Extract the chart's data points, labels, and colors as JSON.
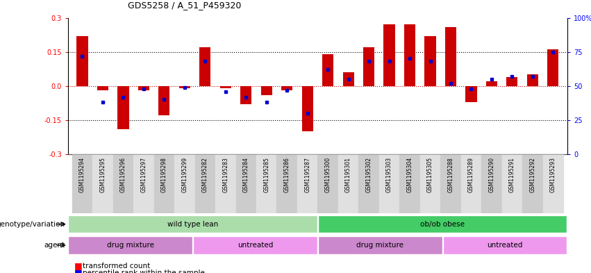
{
  "title": "GDS5258 / A_51_P459320",
  "samples": [
    "GSM1195294",
    "GSM1195295",
    "GSM1195296",
    "GSM1195297",
    "GSM1195298",
    "GSM1195299",
    "GSM1195282",
    "GSM1195283",
    "GSM1195284",
    "GSM1195285",
    "GSM1195286",
    "GSM1195287",
    "GSM1195300",
    "GSM1195301",
    "GSM1195302",
    "GSM1195303",
    "GSM1195304",
    "GSM1195305",
    "GSM1195288",
    "GSM1195289",
    "GSM1195290",
    "GSM1195291",
    "GSM1195292",
    "GSM1195293"
  ],
  "red_bars": [
    0.22,
    -0.02,
    -0.19,
    -0.02,
    -0.13,
    -0.01,
    0.17,
    -0.01,
    -0.08,
    -0.04,
    -0.02,
    -0.2,
    0.14,
    0.06,
    0.17,
    0.27,
    0.27,
    0.22,
    0.26,
    -0.07,
    0.02,
    0.04,
    0.05,
    0.16
  ],
  "blue_vals": [
    72,
    38,
    42,
    48,
    40,
    49,
    68,
    46,
    42,
    38,
    47,
    30,
    62,
    55,
    68,
    68,
    70,
    68,
    52,
    48,
    55,
    57,
    57,
    75
  ],
  "genotype_groups": [
    {
      "label": "wild type lean",
      "start": 0,
      "end": 12,
      "color": "#aaddaa"
    },
    {
      "label": "ob/ob obese",
      "start": 12,
      "end": 24,
      "color": "#44cc66"
    }
  ],
  "agent_groups": [
    {
      "label": "drug mixture",
      "start": 0,
      "end": 6,
      "color": "#cc88cc"
    },
    {
      "label": "untreated",
      "start": 6,
      "end": 12,
      "color": "#ee99ee"
    },
    {
      "label": "drug mixture",
      "start": 12,
      "end": 18,
      "color": "#cc88cc"
    },
    {
      "label": "untreated",
      "start": 18,
      "end": 24,
      "color": "#ee99ee"
    }
  ],
  "ylim": [
    -0.3,
    0.3
  ],
  "yticks": [
    -0.3,
    -0.15,
    0.0,
    0.15,
    0.3
  ],
  "bar_color": "#CC0000",
  "blue_color": "#0000CC",
  "bg_color": "#ffffff",
  "dotted_line_color": "#000000",
  "zero_line_color": "#CC0000"
}
